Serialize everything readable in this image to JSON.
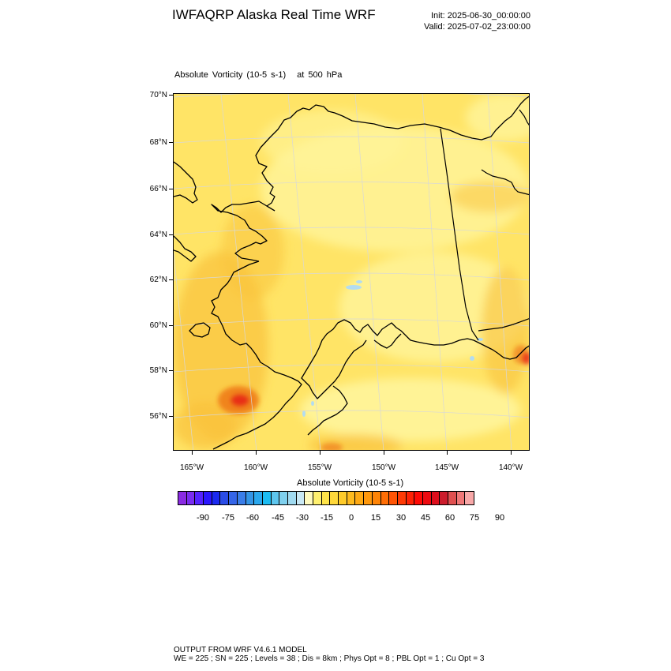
{
  "header": {
    "title": "IWFAQRP Alaska Real Time WRF",
    "init": "Init: 2025-06-30_00:00:00",
    "valid": "Valid: 2025-07-02_23:00:00"
  },
  "plot": {
    "field_label": "Absolute Vorticity   (10-5 s-1)",
    "level_label": "at   500 hPa",
    "lat_labels": [
      "70°N",
      "68°N",
      "66°N",
      "64°N",
      "62°N",
      "60°N",
      "58°N",
      "56°N"
    ],
    "lon_labels": [
      "165°W",
      "160°W",
      "155°W",
      "150°W",
      "145°W",
      "140°W"
    ],
    "colors": {
      "base_yellow": "#ffe466",
      "light_yellow": "#fff59b",
      "orange": "#f9c23a",
      "dark_orange": "#f07d1a",
      "red": "#e8281a",
      "light_blue": "#b3dcf0",
      "coast": "#000000",
      "grid": "#d8d8d8"
    }
  },
  "colorbar": {
    "title": "Absolute Vorticity  (10-5 s-1)",
    "tick_labels": [
      "-90",
      "-75",
      "-60",
      "-45",
      "-30",
      "-15",
      "0",
      "15",
      "30",
      "45",
      "60",
      "75",
      "90"
    ],
    "colors": [
      "#8a2be2",
      "#7a2cf0",
      "#5522ff",
      "#2a16ff",
      "#1b2af0",
      "#2a4ce6",
      "#3565e8",
      "#3a7de8",
      "#3495e6",
      "#2aa8ee",
      "#1cbcf2",
      "#5ec6ee",
      "#7fd0ee",
      "#a0daf0",
      "#c9e8f4",
      "#fffabe",
      "#fff06e",
      "#ffe449",
      "#ffd83a",
      "#ffcb2a",
      "#ffbb1e",
      "#ffaa14",
      "#ff980c",
      "#ff8406",
      "#ff6e05",
      "#ff5405",
      "#ff3a05",
      "#ff2205",
      "#ff0a05",
      "#ee0a10",
      "#dd0e1c",
      "#cc1c2c",
      "#e05050",
      "#f07878",
      "#f8a8a8"
    ]
  },
  "footer": {
    "line1": "OUTPUT FROM WRF V4.6.1 MODEL",
    "line2": "WE = 225 ; SN = 225 ; Levels = 38 ; Dis = 8km ; Phys Opt = 8 ; PBL Opt = 1 ; Cu Opt = 3"
  }
}
